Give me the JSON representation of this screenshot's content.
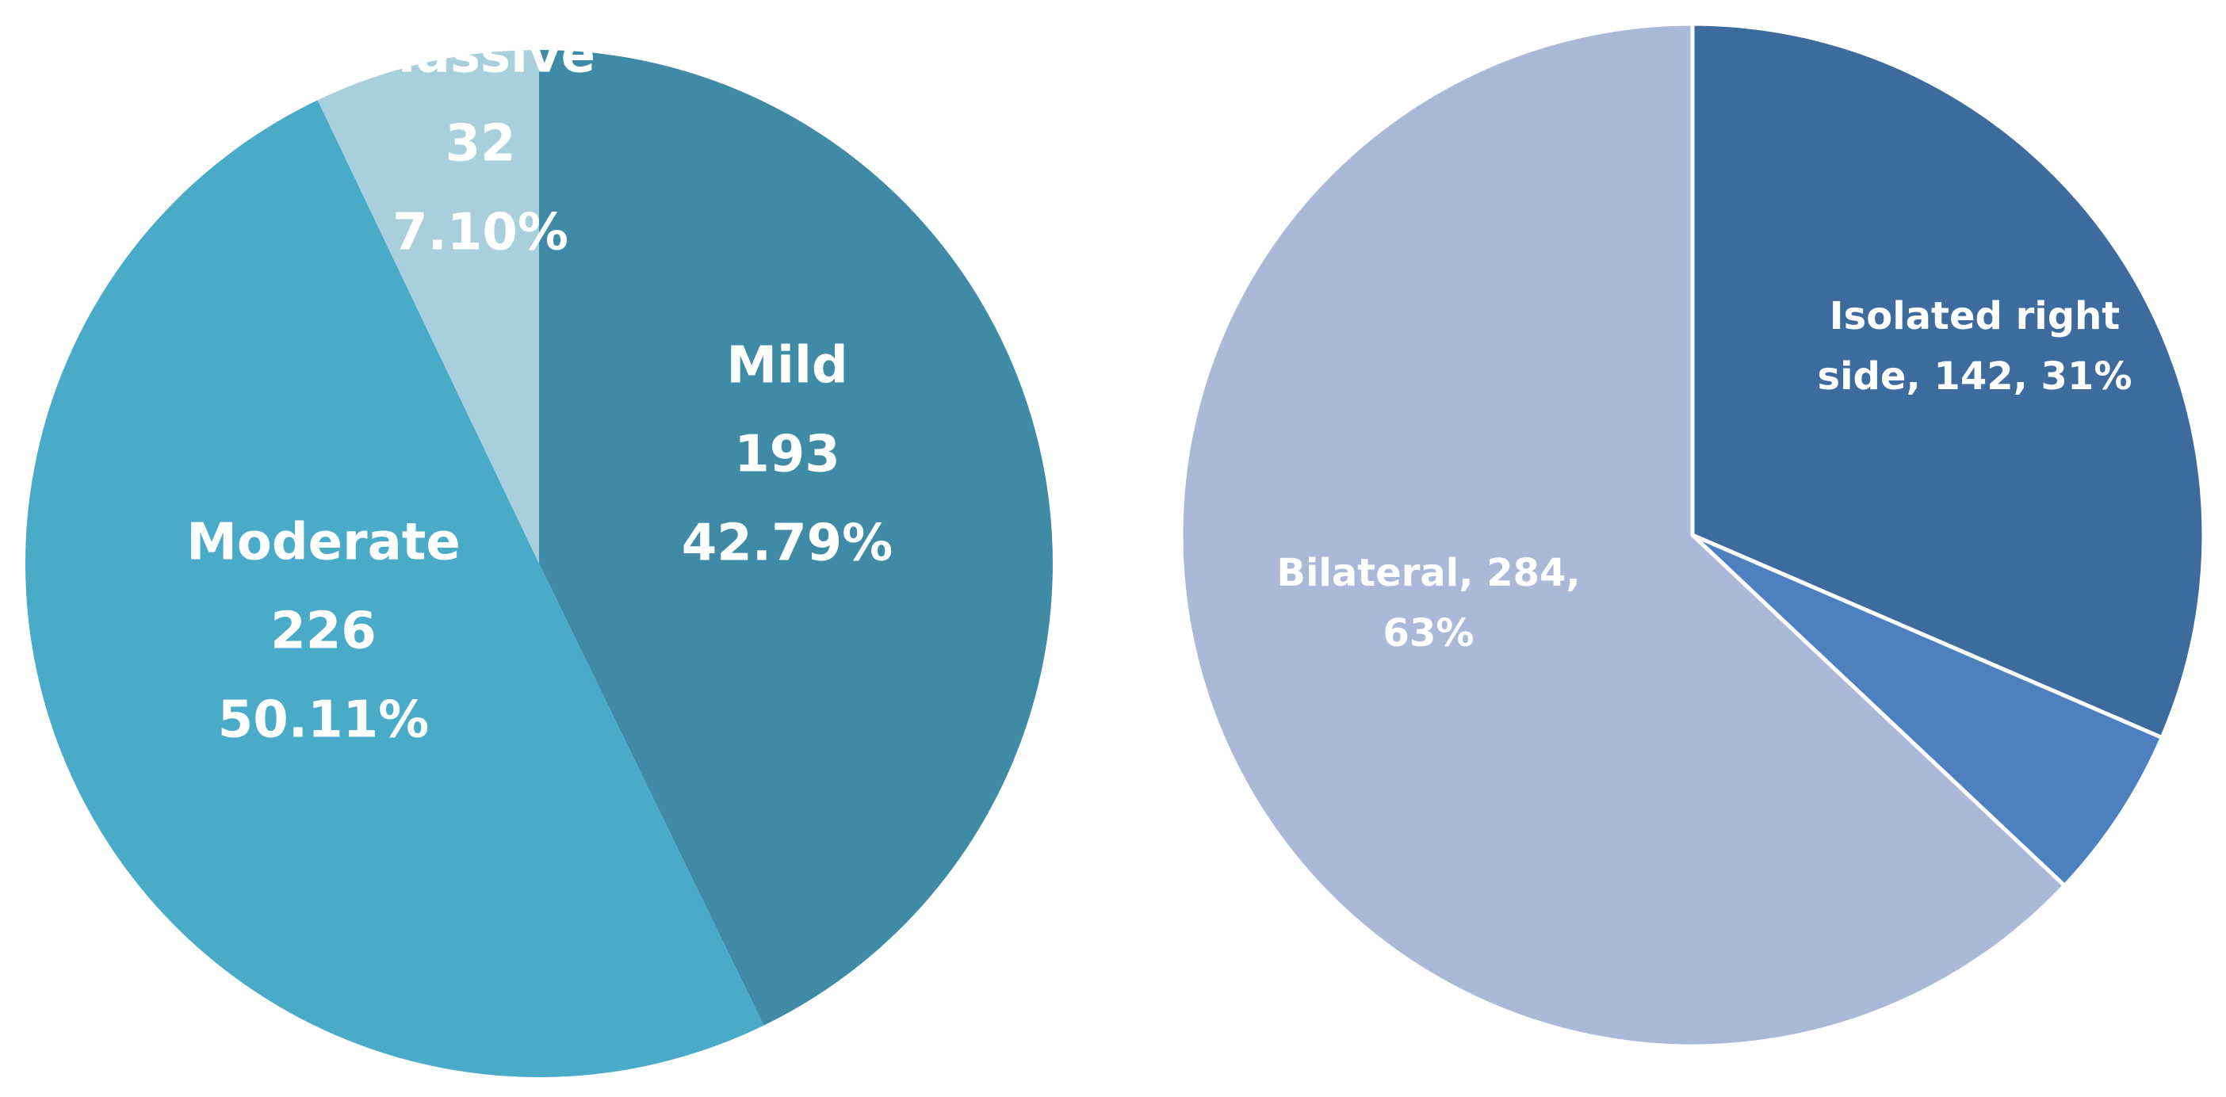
{
  "chart_data": [
    {
      "type": "pie",
      "title": "",
      "slices": [
        {
          "label": "Mild",
          "value": 193,
          "percent": "42.79%",
          "color": "#3f8ba5",
          "label_lines": [
            "Mild",
            "193",
            "42.79%"
          ]
        },
        {
          "label": "Moderate",
          "value": 226,
          "percent": "50.11%",
          "color": "#4aabc8",
          "label_lines": [
            "Moderate",
            "226",
            "50.11%"
          ]
        },
        {
          "label": "Massive",
          "value": 32,
          "percent": "7.10%",
          "color": "#a8cfdc",
          "label_lines": [
            "Massive",
            "32",
            "7.10%"
          ]
        }
      ]
    },
    {
      "type": "pie",
      "title": "",
      "slices": [
        {
          "label": "Isolated right side",
          "value": 142,
          "percent": "31%",
          "color": "#3e6b9e",
          "label_lines": [
            "Isolated right",
            "side, 142, 31%"
          ]
        },
        {
          "label": "",
          "value": 25,
          "percent": "",
          "color": "#4c80bf",
          "label_lines": []
        },
        {
          "label": "Bilateral",
          "value": 284,
          "percent": "63%",
          "color": "#aab9d8",
          "label_lines": [
            "Bilateral, 284,",
            "63%"
          ]
        }
      ]
    }
  ]
}
